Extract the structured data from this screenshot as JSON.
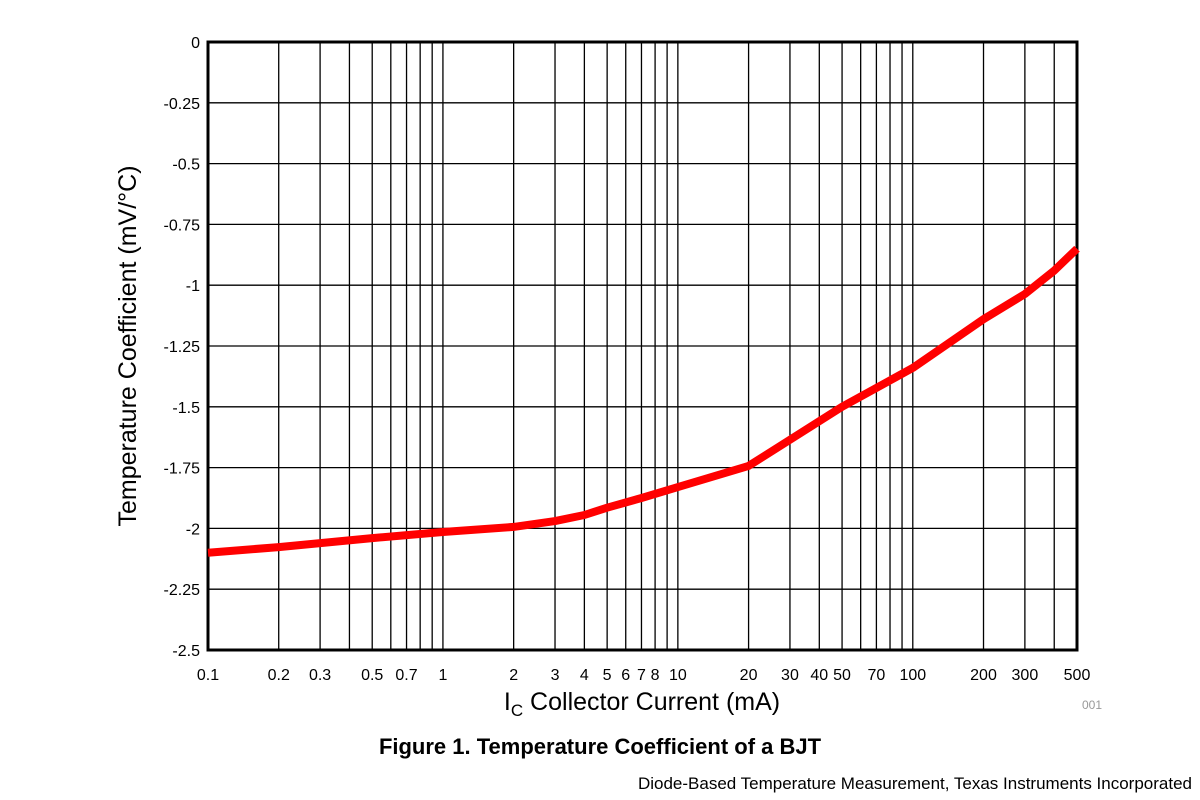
{
  "chart_data": {
    "type": "line",
    "title": "Figure 1. Temperature Coefficient of a BJT",
    "xlabel_main": "I",
    "xlabel_sub": "C",
    "xlabel_rest": " Collector Current (mA)",
    "ylabel": "Temperature Coefficient (mV/°C)",
    "xscale": "log",
    "xlim": [
      0.1,
      500
    ],
    "ylim": [
      -2.5,
      0
    ],
    "grid": true,
    "x_tick_labels": [
      "0.1",
      "0.2",
      "0.3",
      "0.5",
      "0.7",
      "1",
      "2",
      "3",
      "4",
      "5",
      "6",
      "7",
      "8",
      "10",
      "20",
      "30",
      "40",
      "50",
      "70",
      "100",
      "200",
      "300",
      "500"
    ],
    "y_ticks": [
      0,
      -0.25,
      -0.5,
      -0.75,
      -1,
      -1.25,
      -1.5,
      -1.75,
      -2,
      -2.25,
      -2.5
    ],
    "y_tick_labels": [
      "0",
      "-0.25",
      "-0.5",
      "-0.75",
      "-1",
      "-1.25",
      "-1.5",
      "-1.75",
      "-2",
      "-2.25",
      "-2.5"
    ],
    "series": [
      {
        "name": "Temperature Coefficient",
        "color": "#ff0000",
        "x": [
          0.1,
          0.2,
          0.5,
          1,
          2,
          3,
          4,
          5,
          7,
          10,
          20,
          50,
          100,
          200,
          300,
          400,
          500
        ],
        "y": [
          -2.1,
          -2.077,
          -2.04,
          -2.015,
          -1.994,
          -1.97,
          -1.945,
          -1.915,
          -1.875,
          -1.83,
          -1.743,
          -1.5,
          -1.34,
          -1.14,
          -1.036,
          -0.94,
          -0.85
        ]
      }
    ],
    "figure_id": "001"
  },
  "source": "Diode-Based Temperature Measurement, Texas Instruments Incorporated"
}
